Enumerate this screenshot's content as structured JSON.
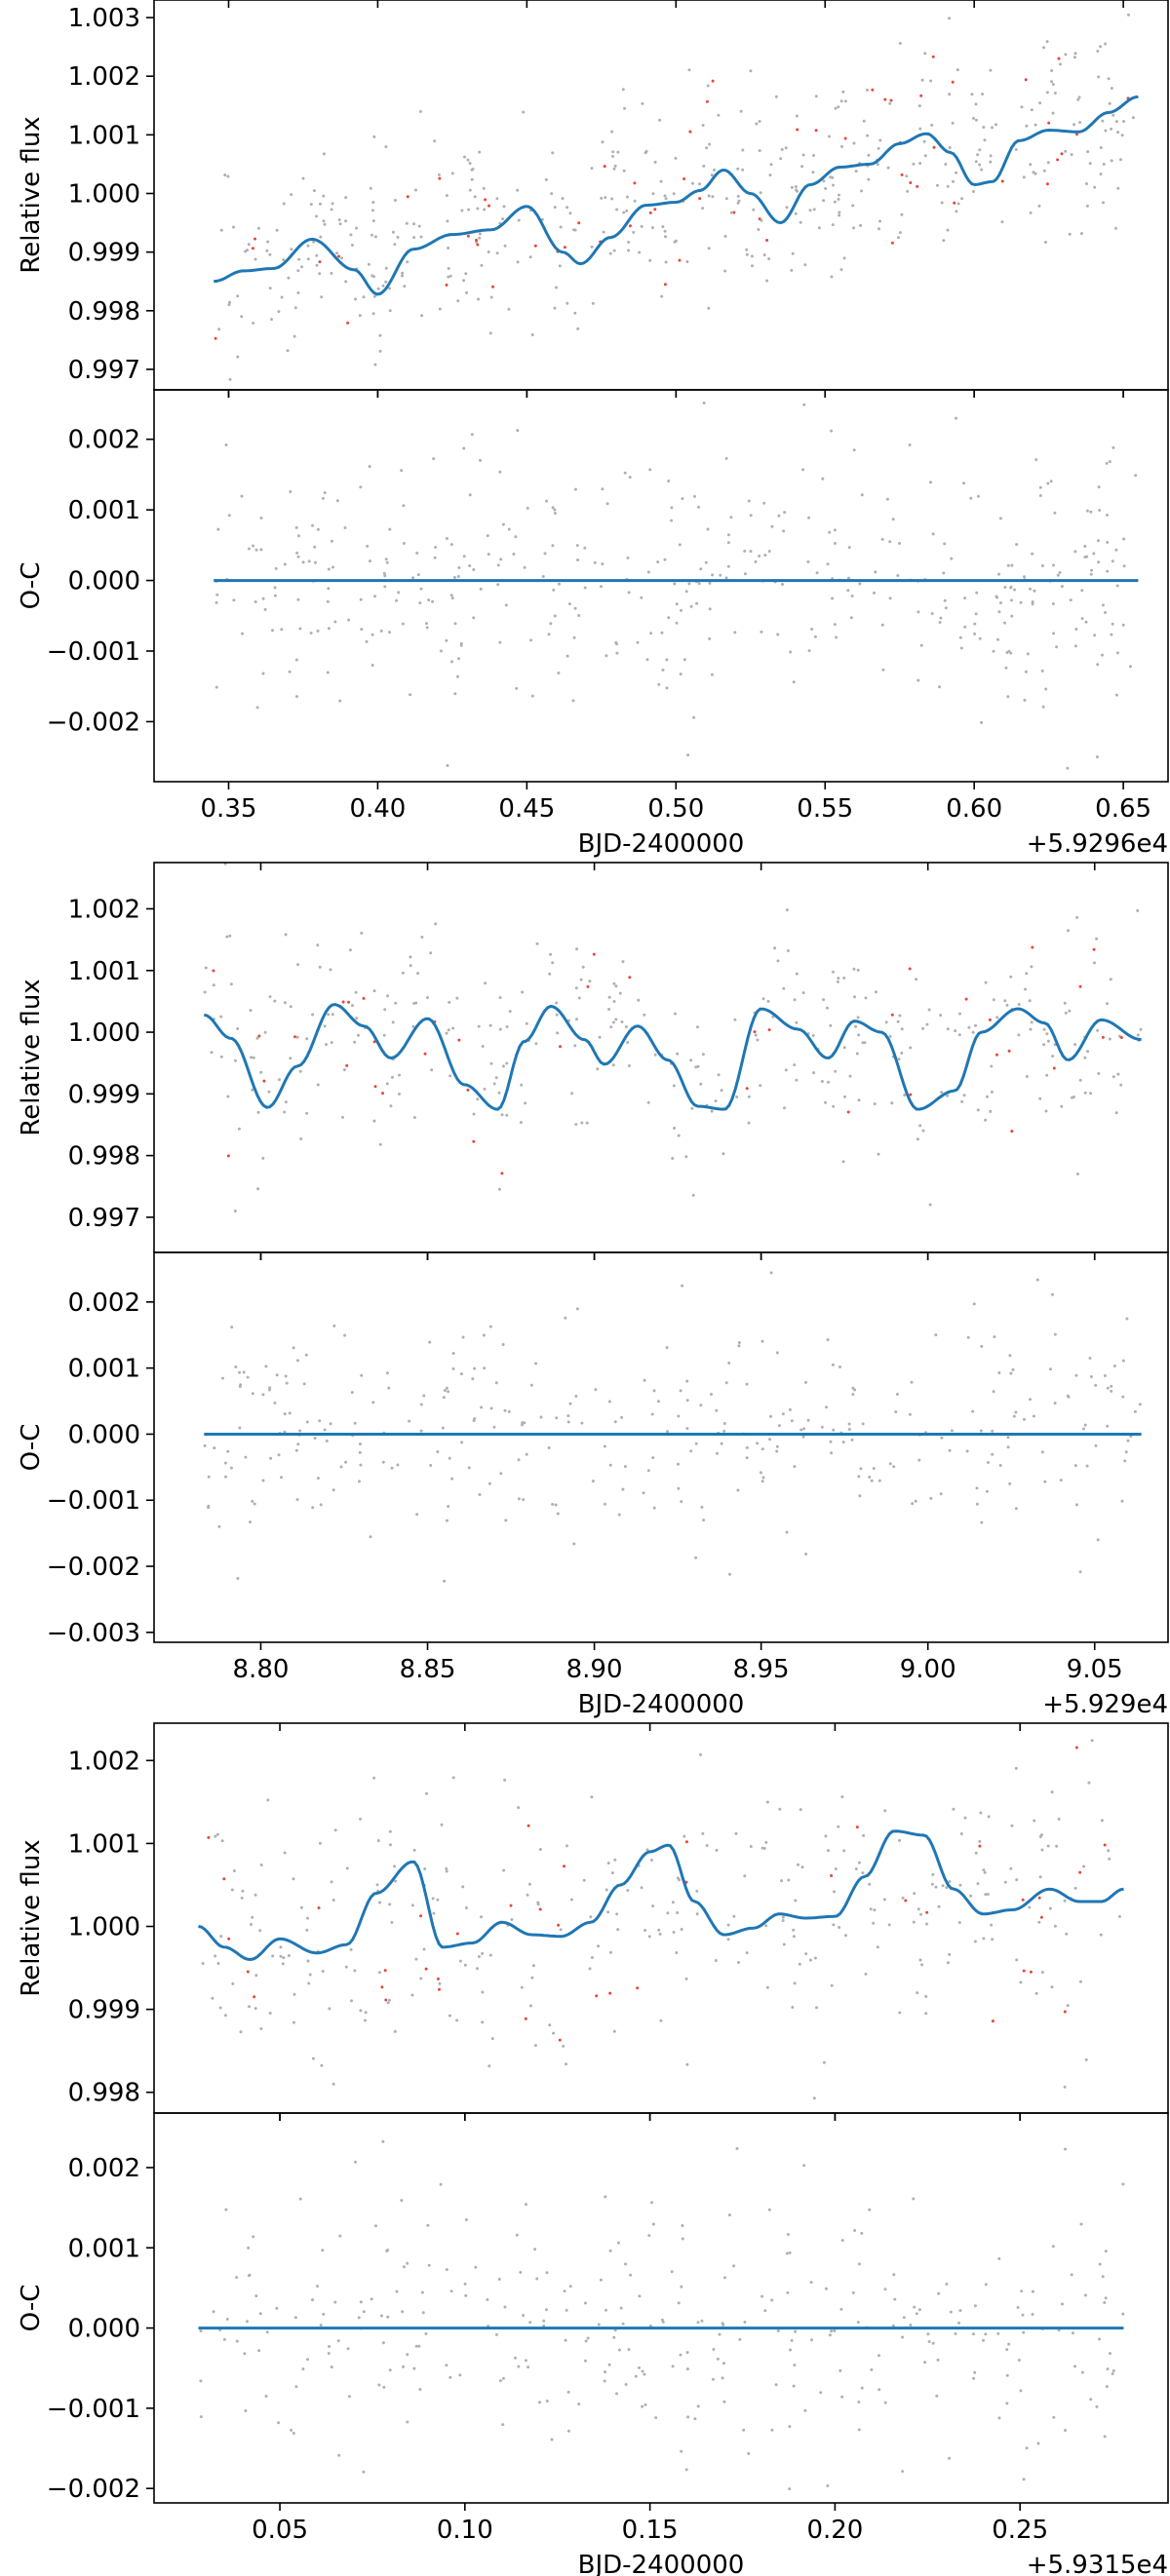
{
  "figure": {
    "colors": {
      "model": "#1f77b4",
      "points": "#b0b0b0",
      "outliers": "#e8463a"
    }
  },
  "chart_data": [
    {
      "type": "scatter",
      "panel": "flux",
      "ylabel": "Relative flux",
      "xlabel": "",
      "xlim": [
        0.325,
        0.665
      ],
      "ylim": [
        0.99665,
        1.0033
      ],
      "xticks": [
        0.35,
        0.4,
        0.45,
        0.5,
        0.55,
        0.6,
        0.65
      ],
      "yticks": [
        0.997,
        0.998,
        0.999,
        1.0,
        1.001,
        1.002,
        1.003
      ],
      "x_range": [
        0.345,
        0.655
      ],
      "model_curve": {
        "x": [
          0.345,
          0.355,
          0.365,
          0.378,
          0.392,
          0.4,
          0.412,
          0.425,
          0.438,
          0.45,
          0.462,
          0.468,
          0.478,
          0.49,
          0.5,
          0.508,
          0.516,
          0.525,
          0.535,
          0.545,
          0.555,
          0.565,
          0.575,
          0.584,
          0.592,
          0.6,
          0.606,
          0.615,
          0.625,
          0.635,
          0.645,
          0.655
        ],
        "y": [
          0.9985,
          0.99868,
          0.99872,
          0.99922,
          0.9987,
          0.99828,
          0.99905,
          0.9993,
          0.99938,
          0.99978,
          0.999,
          0.9988,
          0.99925,
          0.9998,
          0.99985,
          1.00005,
          1.0004,
          1.0,
          0.9995,
          1.00015,
          1.00045,
          1.0005,
          1.00085,
          1.00102,
          1.0007,
          1.00015,
          1.0002,
          1.0009,
          1.00108,
          1.00105,
          1.00138,
          1.00165
        ]
      },
      "scatter": {
        "count": 520,
        "trend": [
          0.99862,
          1.0013
        ],
        "spread": 0.00085,
        "outlier_fraction": 0.1
      }
    },
    {
      "type": "scatter",
      "panel": "residuals",
      "ylabel": "O-C",
      "xlabel": "BJD-2400000",
      "offset_text": "+5.9296e4",
      "xlim": [
        0.325,
        0.665
      ],
      "ylim": [
        -0.00285,
        0.0027
      ],
      "xticks": [
        0.35,
        0.4,
        0.45,
        0.5,
        0.55,
        0.6,
        0.65
      ],
      "yticks": [
        -0.002,
        -0.001,
        0.0,
        0.001,
        0.002
      ],
      "x_range": [
        0.345,
        0.655
      ],
      "model_line": 0.0,
      "scatter": {
        "count": 420,
        "spread": 0.0009
      }
    },
    {
      "type": "scatter",
      "panel": "flux",
      "ylabel": "Relative flux",
      "xlabel": "",
      "xlim": [
        8.768,
        9.072
      ],
      "ylim": [
        0.99643,
        1.00275
      ],
      "xticks": [
        8.8,
        8.85,
        8.9,
        8.95,
        9.0,
        9.05
      ],
      "yticks": [
        0.997,
        0.998,
        0.999,
        1.0,
        1.001,
        1.002
      ],
      "x_range": [
        8.783,
        9.064
      ],
      "model_curve": {
        "x": [
          8.783,
          8.791,
          8.802,
          8.811,
          8.822,
          8.831,
          8.839,
          8.85,
          8.861,
          8.871,
          8.879,
          8.887,
          8.897,
          8.903,
          8.913,
          8.922,
          8.931,
          8.939,
          8.95,
          8.961,
          8.97,
          8.978,
          8.986,
          8.997,
          9.008,
          9.016,
          9.027,
          9.035,
          9.042,
          9.052,
          9.064
        ],
        "y": [
          1.00028,
          0.9999,
          0.99878,
          0.99945,
          1.00045,
          1.0001,
          0.99958,
          1.00022,
          0.99915,
          0.99875,
          0.99985,
          1.00042,
          0.99988,
          0.99948,
          1.0001,
          0.99955,
          0.9988,
          0.99875,
          1.00038,
          1.00005,
          0.99958,
          1.00018,
          1.0,
          0.99875,
          0.99905,
          1.0,
          1.00038,
          1.00015,
          0.99955,
          1.0002,
          0.99988
        ]
      },
      "scatter": {
        "count": 380,
        "trend": [
          1.0,
          1.0
        ],
        "spread": 0.00085,
        "outlier_fraction": 0.1
      }
    },
    {
      "type": "scatter",
      "panel": "residuals",
      "ylabel": "O-C",
      "xlabel": "BJD-2400000",
      "offset_text": "+5.929e4",
      "xlim": [
        8.768,
        9.072
      ],
      "ylim": [
        -0.00315,
        0.00275
      ],
      "xticks": [
        8.8,
        8.85,
        8.9,
        8.95,
        9.0,
        9.05
      ],
      "yticks": [
        -0.003,
        -0.002,
        -0.001,
        0.0,
        0.001,
        0.002
      ],
      "x_range": [
        8.783,
        9.064
      ],
      "model_line": 0.0,
      "scatter": {
        "count": 330,
        "spread": 0.0009
      }
    },
    {
      "type": "scatter",
      "panel": "flux",
      "ylabel": "Relative flux",
      "xlabel": "",
      "xlim": [
        0.016,
        0.29
      ],
      "ylim": [
        0.99775,
        1.00245
      ],
      "xticks": [
        0.05,
        0.1,
        0.15,
        0.2,
        0.25
      ],
      "yticks": [
        0.998,
        0.999,
        1.0,
        1.001,
        1.002
      ],
      "x_range": [
        0.028,
        0.278
      ],
      "model_curve": {
        "x": [
          0.028,
          0.035,
          0.042,
          0.05,
          0.06,
          0.068,
          0.076,
          0.086,
          0.094,
          0.102,
          0.11,
          0.118,
          0.126,
          0.134,
          0.142,
          0.15,
          0.155,
          0.162,
          0.17,
          0.178,
          0.185,
          0.192,
          0.2,
          0.208,
          0.216,
          0.224,
          0.232,
          0.24,
          0.248,
          0.258,
          0.266,
          0.272,
          0.278
        ],
        "y": [
          1.0,
          0.99975,
          0.9996,
          0.99985,
          0.99968,
          0.99978,
          1.0004,
          1.00078,
          0.99975,
          0.9998,
          1.00005,
          0.9999,
          0.99988,
          1.00005,
          1.0005,
          1.0009,
          1.00098,
          1.0003,
          0.9999,
          0.99998,
          1.00015,
          1.0001,
          1.00012,
          1.0006,
          1.00115,
          1.0011,
          1.00045,
          1.00015,
          1.0002,
          1.00045,
          1.0003,
          1.0003,
          1.00045
        ]
      },
      "scatter": {
        "count": 360,
        "trend": [
          1.0,
          1.0
        ],
        "spread": 0.0008,
        "outlier_fraction": 0.1
      }
    },
    {
      "type": "scatter",
      "panel": "residuals",
      "ylabel": "O-C",
      "xlabel": "BJD-2400000",
      "offset_text": "+5.9315e4",
      "xlim": [
        0.016,
        0.29
      ],
      "ylim": [
        -0.00218,
        0.00268
      ],
      "xticks": [
        0.05,
        0.1,
        0.15,
        0.2,
        0.25
      ],
      "yticks": [
        -0.002,
        -0.001,
        0.0,
        0.001,
        0.002
      ],
      "x_range": [
        0.028,
        0.278
      ],
      "model_line": 0.0,
      "scatter": {
        "count": 320,
        "spread": 0.00085
      }
    }
  ]
}
